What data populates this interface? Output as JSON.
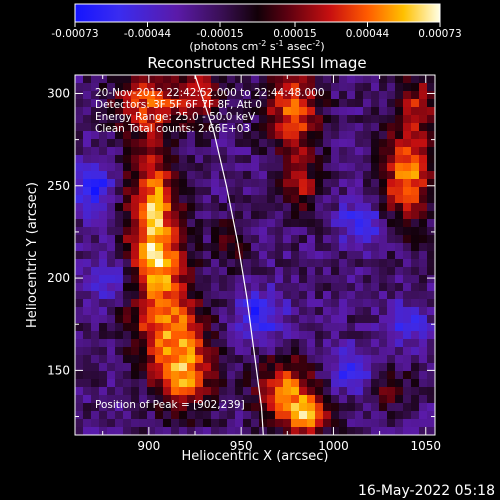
{
  "chart_data": {
    "type": "heatmap",
    "title": "Reconstructed RHESSI Image",
    "xlabel": "Heliocentric X (arcsec)",
    "ylabel": "Heliocentric Y (arcsec)",
    "xlim": [
      860,
      1055
    ],
    "ylim": [
      115,
      310
    ],
    "xticks": [
      900,
      950,
      1000,
      1050
    ],
    "yticks": [
      150,
      200,
      250,
      300
    ],
    "colorbar": {
      "min": -0.00073,
      "max": 0.00073,
      "ticks": [
        -0.00073,
        -0.00044,
        -0.00015,
        0.00015,
        0.00044,
        0.00073
      ],
      "tick_labels": [
        "-0.00073",
        "-0.00044",
        "-0.00015",
        "0.00015",
        "0.00044",
        "0.00073"
      ],
      "unit_line": "(photons cm",
      "unit_exp1": "-2",
      "unit_mid": " s",
      "unit_exp2": "-1",
      "unit_mid2": " asec",
      "unit_exp3": "-2",
      "unit_end": ")"
    },
    "annotations": [
      "20-Nov-2012 22:42:52.000 to 22:44:48.000",
      "Detectors: 3F 5F 6F 7F 8F, Att 0",
      "Energy Range: 25.0 - 50.0 keV",
      "Clean     Total counts: 2.66E+03"
    ],
    "peak_label": "Position of Peak = [902,239]",
    "limb_curve": [
      [
        925,
        310
      ],
      [
        935,
        280
      ],
      [
        942,
        250
      ],
      [
        948,
        220
      ],
      [
        953,
        190
      ],
      [
        957,
        160
      ],
      [
        961,
        130
      ],
      [
        962,
        115
      ]
    ],
    "bright_regions": [
      {
        "x": 900,
        "y": 295,
        "sx": 14,
        "sy": 12,
        "amp": 0.00055
      },
      {
        "x": 902,
        "y": 239,
        "sx": 10,
        "sy": 22,
        "amp": 0.00073
      },
      {
        "x": 905,
        "y": 205,
        "sx": 12,
        "sy": 14,
        "amp": 0.0006
      },
      {
        "x": 910,
        "y": 175,
        "sx": 14,
        "sy": 12,
        "amp": 0.00058
      },
      {
        "x": 918,
        "y": 148,
        "sx": 12,
        "sy": 14,
        "amp": 0.0007
      },
      {
        "x": 928,
        "y": 300,
        "sx": 8,
        "sy": 10,
        "amp": 0.0005
      },
      {
        "x": 945,
        "y": 220,
        "sx": 6,
        "sy": 10,
        "amp": 0.0003
      },
      {
        "x": 978,
        "y": 290,
        "sx": 10,
        "sy": 16,
        "amp": 0.00065
      },
      {
        "x": 982,
        "y": 250,
        "sx": 7,
        "sy": 12,
        "amp": 0.0004
      },
      {
        "x": 975,
        "y": 140,
        "sx": 12,
        "sy": 12,
        "amp": 0.0006
      },
      {
        "x": 985,
        "y": 125,
        "sx": 10,
        "sy": 8,
        "amp": 0.00055
      },
      {
        "x": 1040,
        "y": 255,
        "sx": 10,
        "sy": 18,
        "amp": 0.00068
      },
      {
        "x": 1045,
        "y": 295,
        "sx": 8,
        "sy": 12,
        "amp": 0.0004
      },
      {
        "x": 1030,
        "y": 140,
        "sx": 8,
        "sy": 8,
        "amp": 0.0003
      }
    ],
    "dark_regions": [
      {
        "x": 870,
        "y": 250,
        "sx": 8,
        "sy": 10,
        "amp": -0.0005
      },
      {
        "x": 880,
        "y": 200,
        "sx": 10,
        "sy": 10,
        "amp": -0.0003
      },
      {
        "x": 960,
        "y": 180,
        "sx": 10,
        "sy": 10,
        "amp": -0.0004
      },
      {
        "x": 1015,
        "y": 230,
        "sx": 8,
        "sy": 8,
        "amp": -0.00045
      },
      {
        "x": 1010,
        "y": 150,
        "sx": 10,
        "sy": 8,
        "amp": -0.0004
      },
      {
        "x": 1040,
        "y": 175,
        "sx": 8,
        "sy": 8,
        "amp": -0.00035
      }
    ]
  },
  "footer": {
    "timestamp": "16-May-2022 05:18"
  }
}
